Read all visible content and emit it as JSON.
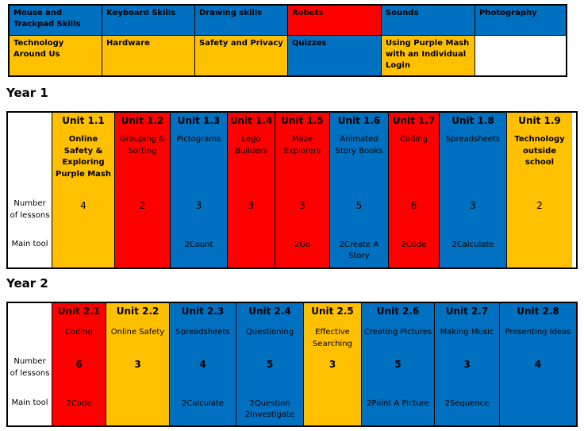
{
  "colors": {
    "yellow": "#ffc000",
    "red": "#ff0000",
    "blue": "#0070c0",
    "white": "#ffffff"
  },
  "key": [
    {
      "label": "Mouse and Trackpad Skills",
      "color": "blue"
    },
    {
      "label": "Keyboard Skills",
      "color": "blue"
    },
    {
      "label": "Drawing skills",
      "color": "blue"
    },
    {
      "label": "Robots",
      "color": "red"
    },
    {
      "label": "Sounds",
      "color": "blue"
    },
    {
      "label": "Photography",
      "color": "blue"
    },
    {
      "label": "Technology Around Us",
      "color": "yellow"
    },
    {
      "label": "Hardware",
      "color": "yellow"
    },
    {
      "label": "Safety and Privacy",
      "color": "yellow"
    },
    {
      "label": "Quizzes",
      "color": "blue"
    },
    {
      "label": "Using Purple Mash with an Individual Login",
      "color": "yellow"
    },
    {
      "label": "",
      "color": "white"
    }
  ],
  "year1": {
    "heading": "Year 1",
    "labels": {
      "lessons": "Number of lessons",
      "tool": "Main tool"
    },
    "units": [
      {
        "title": "Unit 1.1",
        "name": "Online Safety & Exploring Purple Mash",
        "lessons": "4",
        "tool": "",
        "color": "yellow"
      },
      {
        "title": "Unit 1.2",
        "name": "Grouping & Sorting",
        "lessons": "2",
        "tool": "",
        "color": "red"
      },
      {
        "title": "Unit 1.3",
        "name": "Pictograms",
        "lessons": "3",
        "tool": "2Count",
        "color": "blue"
      },
      {
        "title": "Unit 1.4",
        "name": "Lego Builders",
        "lessons": "3",
        "tool": "",
        "color": "red"
      },
      {
        "title": "Unit 1.5",
        "name": "Maze Explorers",
        "lessons": "3",
        "tool": "2Go",
        "color": "red"
      },
      {
        "title": "Unit 1.6",
        "name": "Animated Story Books",
        "lessons": "5",
        "tool": "2Create A Story",
        "color": "blue"
      },
      {
        "title": "Unit 1.7",
        "name": "Coding",
        "lessons": "6",
        "tool": "2Code",
        "color": "red"
      },
      {
        "title": "Unit 1.8",
        "name": "Spreadsheets",
        "lessons": "3",
        "tool": "2Calculate",
        "color": "blue"
      },
      {
        "title": "Unit 1.9",
        "name": "Technology outside school",
        "lessons": "2",
        "tool": "",
        "color": "yellow"
      }
    ]
  },
  "year2": {
    "heading": "Year 2",
    "labels": {
      "lessons": "Number of lessons",
      "tool": "Main tool"
    },
    "units": [
      {
        "title": "Unit 2.1",
        "name": "Coding",
        "lessons": "6",
        "tool": "2Code",
        "color": "red"
      },
      {
        "title": "Unit 2.2",
        "name": "Online Safety",
        "lessons": "3",
        "tool": "",
        "color": "yellow"
      },
      {
        "title": "Unit 2.3",
        "name": "Spreadsheets",
        "lessons": "4",
        "tool": "2Calculate",
        "color": "blue"
      },
      {
        "title": "Unit 2.4",
        "name": "Questioning",
        "lessons": "5",
        "tool": "2Question 2Investigate",
        "color": "blue"
      },
      {
        "title": "Unit 2.5",
        "name": "Effective Searching",
        "lessons": "3",
        "tool": "",
        "color": "yellow"
      },
      {
        "title": "Unit 2.6",
        "name": "Creating Pictures",
        "lessons": "5",
        "tool": "2Paint A Picture",
        "color": "blue"
      },
      {
        "title": "Unit 2.7",
        "name": "Making Music",
        "lessons": "3",
        "tool": "2Sequence",
        "color": "blue"
      },
      {
        "title": "Unit 2.8",
        "name": "Presenting Ideas",
        "lessons": "4",
        "tool": "",
        "color": "blue"
      }
    ]
  }
}
